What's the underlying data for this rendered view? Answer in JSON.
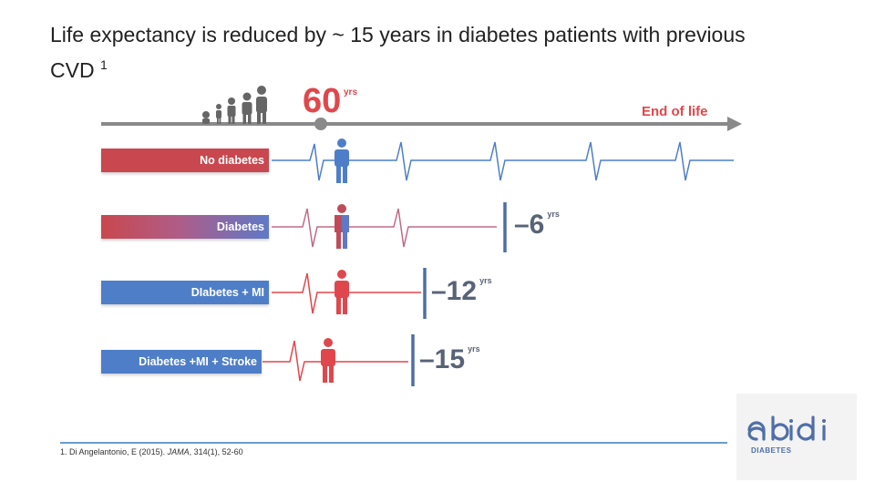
{
  "slide": {
    "title": "Life expectancy is reduced by ~ 15 years in diabetes patients with previous CVD",
    "title_ref": "1"
  },
  "timeline": {
    "age_value": "60",
    "age_unit": "yrs",
    "end_label": "End of life"
  },
  "groups": [
    {
      "label": "No diabetes",
      "reduction_value": "",
      "reduction_unit": ""
    },
    {
      "label": "Diabetes",
      "reduction_value": "–6",
      "reduction_unit": "yrs"
    },
    {
      "label": "DIabetes + MI",
      "reduction_value": "–12",
      "reduction_unit": "yrs"
    },
    {
      "label": "Diabetes +MI + Stroke",
      "reduction_value": "–15",
      "reduction_unit": "yrs"
    }
  ],
  "footer": {
    "citation_prefix": "1. Di Angelantonio, E (2015).",
    "citation_journal": "JAMA",
    "citation_suffix": ", 314(1), 52-60"
  },
  "logo": {
    "text": "abidi",
    "subtitle": "DIABETES"
  },
  "colors": {
    "accent_red": "#e0474c",
    "blue": "#4f7ec8",
    "axis_gray": "#888888"
  }
}
